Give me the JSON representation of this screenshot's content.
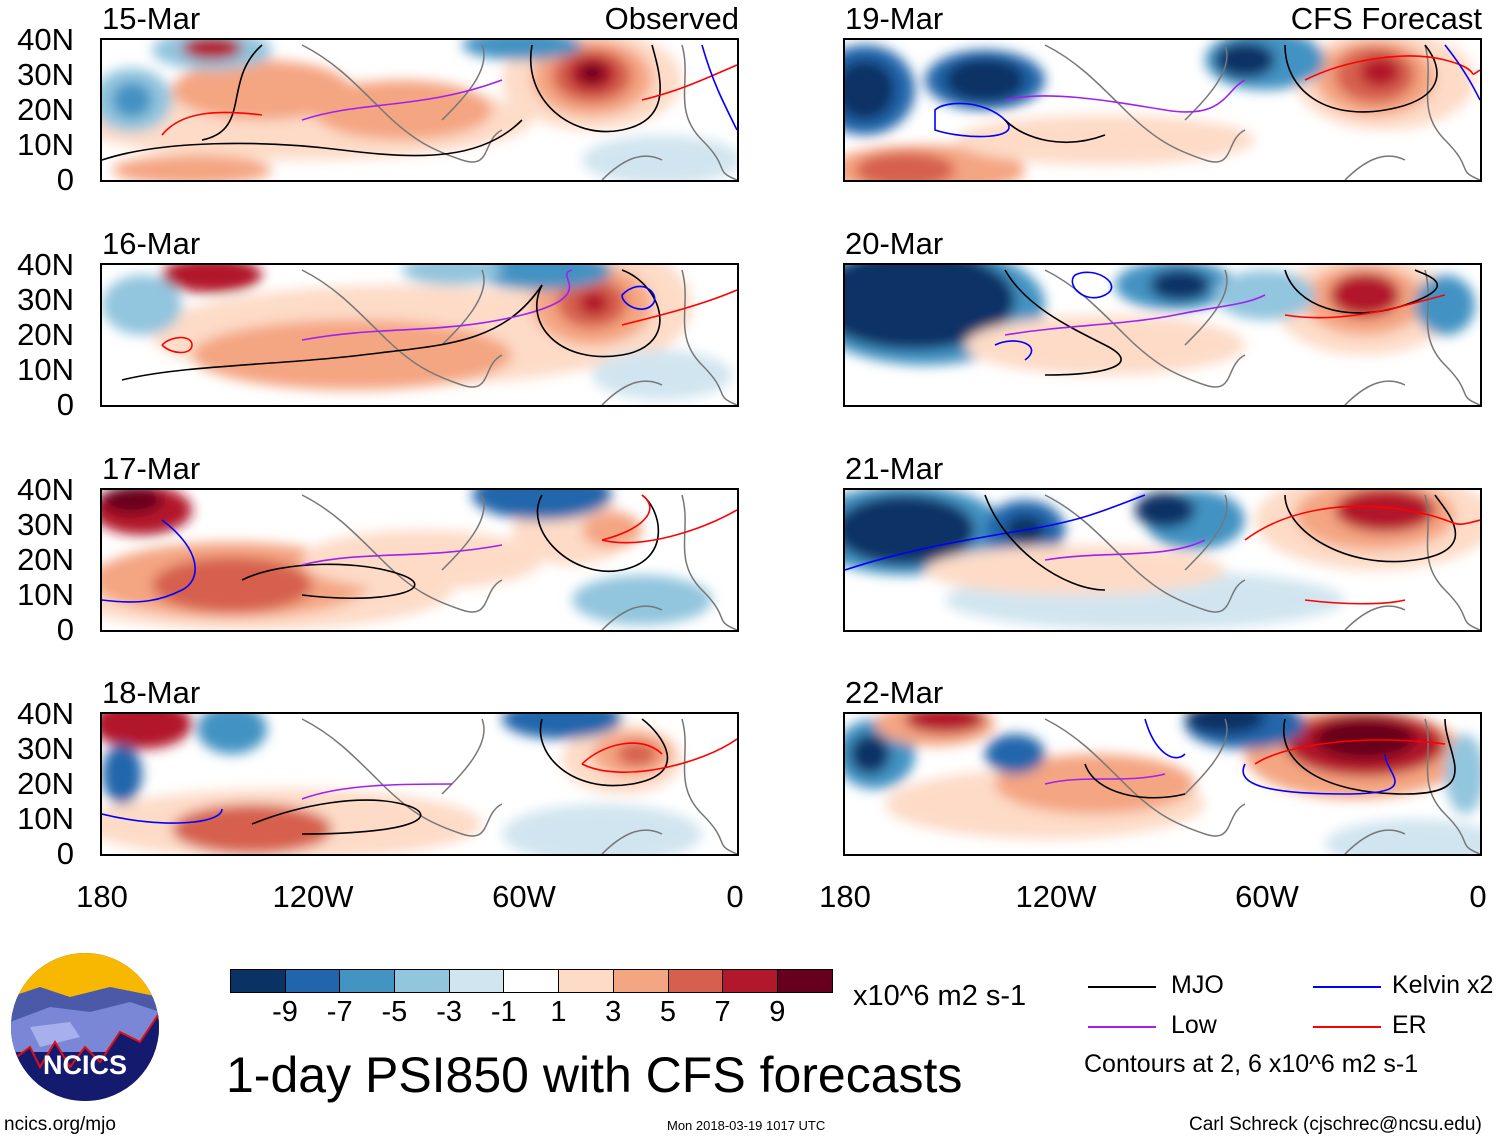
{
  "panels": [
    {
      "date": "15-Mar",
      "label": "Observed"
    },
    {
      "date": "16-Mar"
    },
    {
      "date": "17-Mar"
    },
    {
      "date": "18-Mar"
    },
    {
      "date": "19-Mar",
      "label": "CFS Forecast"
    },
    {
      "date": "20-Mar"
    },
    {
      "date": "21-Mar"
    },
    {
      "date": "22-Mar"
    }
  ],
  "y_ticks": [
    "40N",
    "30N",
    "20N",
    "10N",
    "0"
  ],
  "x_ticks": [
    "180",
    "120W",
    "60W",
    "0"
  ],
  "colorbar": {
    "colors": [
      "#0b3265",
      "#2166ac",
      "#4393c3",
      "#92c5de",
      "#d1e5f0",
      "#ffffff",
      "#fddbc7",
      "#f4a582",
      "#d6604d",
      "#b2182b",
      "#67001f"
    ],
    "labels": [
      "-9",
      "-7",
      "-5",
      "-3",
      "-1",
      "1",
      "3",
      "5",
      "7",
      "9"
    ],
    "units": "x10^6 m2 s-1"
  },
  "legend": {
    "items": [
      {
        "label": "MJO",
        "color": "#000000"
      },
      {
        "label": "Kelvin x2",
        "color": "#0000ff"
      },
      {
        "label": "Low",
        "color": "#a020f0"
      },
      {
        "label": "ER",
        "color": "#ff0000"
      }
    ],
    "contours_note": "Contours at 2, 6 x10^6 m2 s-1"
  },
  "title": "1-day PSI850 with CFS forecasts",
  "logo_text": "NCICS",
  "footer": {
    "url": "ncics.org/mjo",
    "timestamp": "Mon 2018-03-19 1017 UTC",
    "author": "Carl Schreck (cjschrec@ncsu.edu)"
  }
}
